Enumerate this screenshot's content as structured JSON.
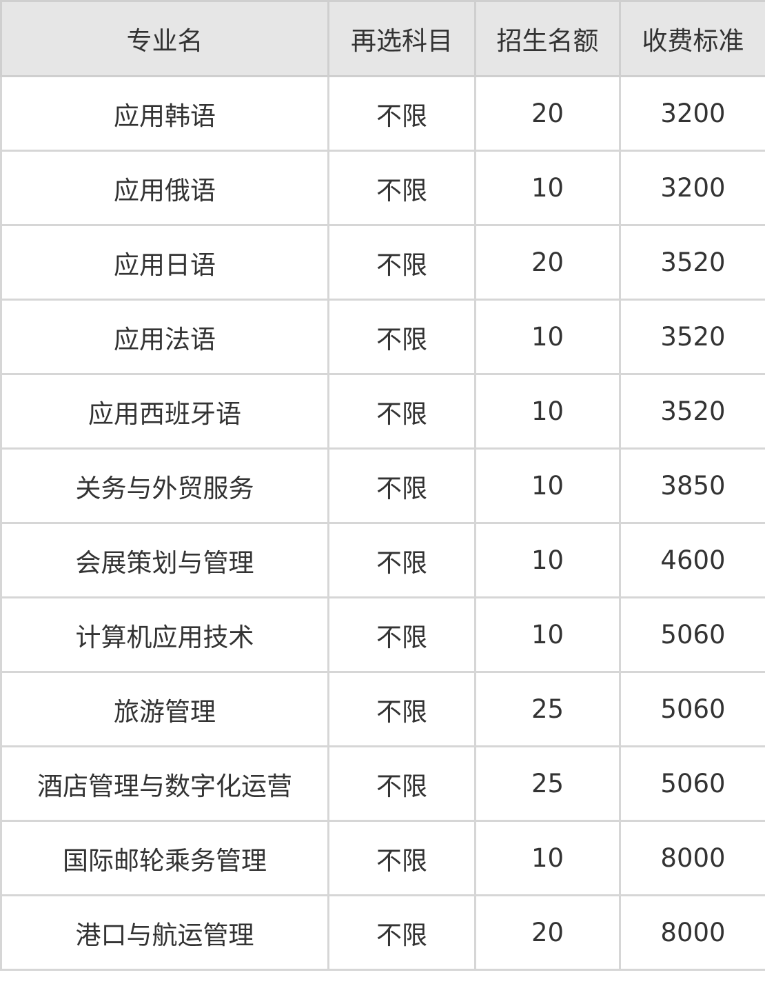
{
  "table": {
    "headers": [
      "专业名",
      "再选科目",
      "招生名额",
      "收费标准"
    ],
    "rows": [
      [
        "应用韩语",
        "不限",
        "20",
        "3200"
      ],
      [
        "应用俄语",
        "不限",
        "10",
        "3200"
      ],
      [
        "应用日语",
        "不限",
        "20",
        "3520"
      ],
      [
        "应用法语",
        "不限",
        "10",
        "3520"
      ],
      [
        "应用西班牙语",
        "不限",
        "10",
        "3520"
      ],
      [
        "关务与外贸服务",
        "不限",
        "10",
        "3850"
      ],
      [
        "会展策划与管理",
        "不限",
        "10",
        "4600"
      ],
      [
        "计算机应用技术",
        "不限",
        "10",
        "5060"
      ],
      [
        "旅游管理",
        "不限",
        "25",
        "5060"
      ],
      [
        "酒店管理与数字化运营",
        "不限",
        "25",
        "5060"
      ],
      [
        "国际邮轮乘务管理",
        "不限",
        "10",
        "8000"
      ],
      [
        "港口与航运管理",
        "不限",
        "20",
        "8000"
      ]
    ]
  }
}
